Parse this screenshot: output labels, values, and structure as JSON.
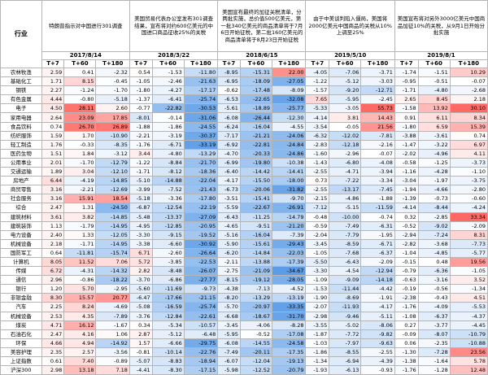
{
  "events": [
    "特朗普指示对中国进行301调查",
    "美国贸易代表办公室发布301调查结果，宣布将对约600亿美元的中国进口商品征收25%的关税",
    "美国宣布最终的加征关税清单，分两批实施，总价值500亿美元，第一批340亿美元的商品清单将于7月6日开始征税，第二批160亿美元的商品清单将于8月23日开始征税",
    "由于中美谈判陷入僵局，美国将2000亿美元中国商品的关税从10%上调至25%",
    "美国宣布将对另外3000亿美元中国商品加征10%的关税，从9月1日开始分批实施"
  ],
  "industry_header": "行业",
  "dates": [
    "2017/8/14",
    "2018/3/22",
    "2018/6/15",
    "2019/5/10",
    "2019/8/1"
  ],
  "periods": [
    "T+7",
    "T+60",
    "T+180"
  ],
  "rows": [
    {
      "name": "农林牧渔",
      "v": [
        "2.59",
        "0.41",
        "-2.32",
        "0.54",
        "-1.53",
        "-11.80",
        "-8.95",
        "-15.31",
        "22.00",
        "-4.05",
        "-7.06",
        "-3.71",
        "-1.74",
        "-1.51",
        "10.29"
      ]
    },
    {
      "name": "基础化工",
      "v": [
        "1.71",
        "8.15",
        "-0.45",
        "-1.05",
        "-2.46",
        "-21.63",
        "-6.95",
        "-18.09",
        "-27.05",
        "-1.22",
        "-5.12",
        "-3.03",
        "-0.95",
        "-0.51",
        "-0.07"
      ]
    },
    {
      "name": "钢铁",
      "v": [
        "2.27",
        "-1.24",
        "-1.70",
        "-1.80",
        "-4.27",
        "-17.17",
        "-0.62",
        "-17.48",
        "-8.09",
        "-1.57",
        "-9.20",
        "-12.71",
        "-1.71",
        "-4.80",
        "-2.68"
      ]
    },
    {
      "name": "有色金属",
      "v": [
        "4.44",
        "-0.80",
        "-5.18",
        "-1.37",
        "-6.41",
        "-25.74",
        "-6.53",
        "-22.65",
        "-32.08",
        "7.65",
        "-5.95",
        "-2.45",
        "2.65",
        "8.45",
        "2.18"
      ]
    },
    {
      "name": "电子",
      "v": [
        "4.50",
        "28.11",
        "2.60",
        "-0.77",
        "-22.82",
        "-30.53",
        "-5.61",
        "-18.89",
        "-25.77",
        "-5.33",
        "-3.05",
        "55.73",
        "-1.58",
        "13.92",
        "30.10"
      ]
    },
    {
      "name": "家用电器",
      "v": [
        "2.64",
        "23.09",
        "17.85",
        "-8.01",
        "-0.14",
        "-31.06",
        "-6.08",
        "-26.44",
        "-12.30",
        "-4.14",
        "3.81",
        "14.43",
        "0.91",
        "6.11",
        "8.34"
      ]
    },
    {
      "name": "食品饮料",
      "v": [
        "0.74",
        "26.70",
        "26.89",
        "-1.88",
        "-1.86",
        "-24.55",
        "-6.24",
        "-16.04",
        "-4.55",
        "-3.54",
        "-0.05",
        "21.56",
        "-1.80",
        "6.59",
        "15.39"
      ]
    },
    {
      "name": "纺织服饰",
      "v": [
        "1.59",
        "1.70",
        "-10.90",
        "-2.21",
        "-3.19",
        "-30.37",
        "-7.17",
        "-21.21",
        "-24.06",
        "-6.32",
        "-12.02",
        "-7.81",
        "-3.88",
        "-3.61",
        "0.74"
      ]
    },
    {
      "name": "轻工制造",
      "v": [
        "1.76",
        "-0.33",
        "-8.35",
        "-1.76",
        "-6.71",
        "-33.19",
        "-6.92",
        "-22.81",
        "-24.84",
        "-2.83",
        "-12.18",
        "-2.16",
        "-1.47",
        "-3.22",
        "6.97"
      ]
    },
    {
      "name": "医药生物",
      "v": [
        "1.51",
        "1.84",
        "-3.12",
        "3.44",
        "-4.80",
        "-13.29",
        "-4.70",
        "-20.33",
        "-24.86",
        "-1.60",
        "-2.96",
        "-0.07",
        "-2.02",
        "-4.96",
        "4.11"
      ]
    },
    {
      "name": "公用事业",
      "v": [
        "2.01",
        "-1.70",
        "-12.79",
        "-1.22",
        "-8.84",
        "-21.70",
        "-6.99",
        "-19.80",
        "-10.38",
        "-1.43",
        "-6.80",
        "-4.08",
        "-0.58",
        "-1.25",
        "-3.73"
      ]
    },
    {
      "name": "交通运输",
      "v": [
        "1.89",
        "3.04",
        "-12.10",
        "-1.71",
        "-8.12",
        "-18.36",
        "-6.40",
        "-14.42",
        "-14.41",
        "-2.55",
        "-4.71",
        "-3.94",
        "-1.16",
        "-4.28",
        "-1.10"
      ]
    },
    {
      "name": "房地产",
      "v": [
        "6.44",
        "-4.19",
        "-14.85",
        "-5.10",
        "-14.88",
        "-22.04",
        "-4.17",
        "-15.50",
        "-18.00",
        "0.73",
        "-7.22",
        "-3.34",
        "-3.04",
        "-1.97",
        "-3.75"
      ]
    },
    {
      "name": "商贸零售",
      "v": [
        "3.16",
        "-2.21",
        "-12.69",
        "-3.99",
        "-7.52",
        "-21.43",
        "-6.73",
        "-20.06",
        "-31.82",
        "-2.55",
        "-13.17",
        "-7.45",
        "-1.94",
        "-4.66",
        "-2.80"
      ]
    },
    {
      "name": "社会服务",
      "v": [
        "3.16",
        "15.91",
        "18.54",
        "-5.18",
        "-3.36",
        "-17.80",
        "-3.51",
        "-15.41",
        "-9.70",
        "-2.15",
        "-4.86",
        "-1.88",
        "-1.39",
        "-0.73",
        "-0.60"
      ]
    },
    {
      "name": "综合",
      "v": [
        "2.47",
        "1.31",
        "-24.50",
        "-6.87",
        "-12.54",
        "-22.19",
        "-5.59",
        "-22.67",
        "-26.91",
        "-7.12",
        "-5.15",
        "-11.59",
        "-4.14",
        "-8.44",
        "-4.24"
      ]
    },
    {
      "name": "建筑材料",
      "v": [
        "3.61",
        "3.82",
        "-14.85",
        "-5.48",
        "-13.37",
        "-27.09",
        "-6.43",
        "-11.25",
        "-14.79",
        "-0.48",
        "-10.00",
        "-0.74",
        "0.32",
        "-2.85",
        "33.34"
      ]
    },
    {
      "name": "建筑装饰",
      "v": [
        "1.13",
        "-1.79",
        "-14.95",
        "-4.95",
        "-12.85",
        "-20.95",
        "-4.65",
        "-9.51",
        "-21.20",
        "-0.59",
        "-7.49",
        "-6.31",
        "-0.52",
        "-9.02",
        "-2.09"
      ]
    },
    {
      "name": "电力设备",
      "v": [
        "2.40",
        "1.33",
        "-12.05",
        "-3.30",
        "-9.15",
        "-19.52",
        "-5.16",
        "-16.04",
        "-7.39",
        "-2.04",
        "-7.79",
        "-1.95",
        "-2.94",
        "-7.24",
        "8.31"
      ]
    },
    {
      "name": "机械设备",
      "v": [
        "2.18",
        "-1.71",
        "-14.95",
        "-3.38",
        "-6.60",
        "-30.92",
        "-5.90",
        "-15.61",
        "-29.43",
        "-3.45",
        "-8.59",
        "-6.71",
        "-2.82",
        "-3.68",
        "-7.73"
      ]
    },
    {
      "name": "国防军工",
      "v": [
        "0.64",
        "-11.81",
        "-15.74",
        "6.71",
        "-2.60",
        "-26.64",
        "-6.20",
        "-14.84",
        "-22.03",
        "-1.05",
        "-7.68",
        "-6.37",
        "-1.04",
        "-4.85",
        "-5.77"
      ]
    },
    {
      "name": "计算机",
      "v": [
        "8.05",
        "11.52",
        "7.06",
        "5.72",
        "-3.85",
        "-22.53",
        "-2.11",
        "-13.88",
        "-17.39",
        "-5.50",
        "-6.43",
        "-2.09",
        "-0.15",
        "0.48",
        "19.56"
      ]
    },
    {
      "name": "传媒",
      "v": [
        "6.72",
        "-4.31",
        "-14.32",
        "2.82",
        "-8.48",
        "-26.07",
        "-2.75",
        "-21.09",
        "-34.67",
        "-3.30",
        "-4.54",
        "-12.94",
        "-0.79",
        "-6.36",
        "-1.05"
      ]
    },
    {
      "name": "通信",
      "v": [
        "2.96",
        "-0.86",
        "-18.22",
        "-3.70",
        "-6.86",
        "-27.77",
        "-8.15",
        "-19.12",
        "-28.05",
        "-1.09",
        "-9.09",
        "-14.18",
        "-0.63",
        "-3.16",
        "3.52"
      ]
    },
    {
      "name": "银行",
      "v": [
        "1.20",
        "5.70",
        "-2.95",
        "-5.60",
        "-11.69",
        "-9.73",
        "-4.38",
        "-7.13",
        "-4.52",
        "-1.53",
        "-11.44",
        "-4.42",
        "-0.19",
        "-0.56",
        "-1.34"
      ]
    },
    {
      "name": "非银金融",
      "v": [
        "8.30",
        "15.57",
        "20.77",
        "-6.47",
        "-17.66",
        "-21.15",
        "-8.20",
        "-13.29",
        "-13.19",
        "-1.90",
        "-8.69",
        "-1.91",
        "-2.38",
        "-0.43",
        "4.51"
      ]
    },
    {
      "name": "汽车",
      "v": [
        "2.25",
        "8.24",
        "-4.69",
        "-5.08",
        "-16.59",
        "-25.74",
        "-5.70",
        "-20.97",
        "-33.35",
        "-2.07",
        "-11.93",
        "-4.17",
        "-1.76",
        "-4.09",
        "-5.53"
      ]
    },
    {
      "name": "机械设备",
      "v": [
        "2.53",
        "4.35",
        "-7.89",
        "-3.76",
        "-12.84",
        "-22.61",
        "-6.68",
        "-18.67",
        "-31.70",
        "-2.98",
        "-9.46",
        "-5.11",
        "-1.08",
        "-6.37",
        "-4.37"
      ]
    },
    {
      "name": "煤炭",
      "v": [
        "4.71",
        "16.12",
        "-1.67",
        "0.34",
        "-5.34",
        "-10.57",
        "-3.45",
        "-4.06",
        "-8.28",
        "-3.55",
        "-5.02",
        "-8.06",
        "0.27",
        "-3.77",
        "-4.45"
      ]
    },
    {
      "name": "石油石化",
      "v": [
        "2.47",
        "4.16",
        "1.06",
        "2.87",
        "-5.12",
        "-6.48",
        "-5.95",
        "-0.52",
        "-17.08",
        "-1.87",
        "-7.72",
        "-9.82",
        "-0.09",
        "-8.07",
        "-10.79"
      ]
    },
    {
      "name": "环保",
      "v": [
        "4.66",
        "4.94",
        "-14.92",
        "1.57",
        "-6.66",
        "-29.75",
        "-6.08",
        "-14.55",
        "-24.58",
        "-1.03",
        "-7.97",
        "-9.63",
        "0.06",
        "-2.35",
        "-10.88"
      ]
    },
    {
      "name": "美容护理",
      "v": [
        "2.35",
        "2.57",
        "-3.56",
        "-0.81",
        "-10.14",
        "-22.76",
        "-7.49",
        "-20.11",
        "-17.35",
        "-1.86",
        "-8.55",
        "-2.55",
        "-1.30",
        "-7.28",
        "23.56"
      ]
    },
    {
      "name": "上证指数",
      "v": [
        "0.61",
        "7.40",
        "-0.89",
        "-5.07",
        "-8.83",
        "-18.94",
        "-6.07",
        "-12.04",
        "-19.13",
        "-1.34",
        "-6.94",
        "-4.39",
        "-1.38",
        "-1.64",
        "5.78"
      ]
    },
    {
      "name": "沪深300",
      "v": [
        "2.98",
        "13.18",
        "7.18",
        "-4.41",
        "-8.30",
        "-17.15",
        "-5.98",
        "-12.52",
        "-20.79",
        "-1.93",
        "-6.13",
        "-0.93",
        "-1.76",
        "-1.28",
        "12.48"
      ]
    }
  ]
}
